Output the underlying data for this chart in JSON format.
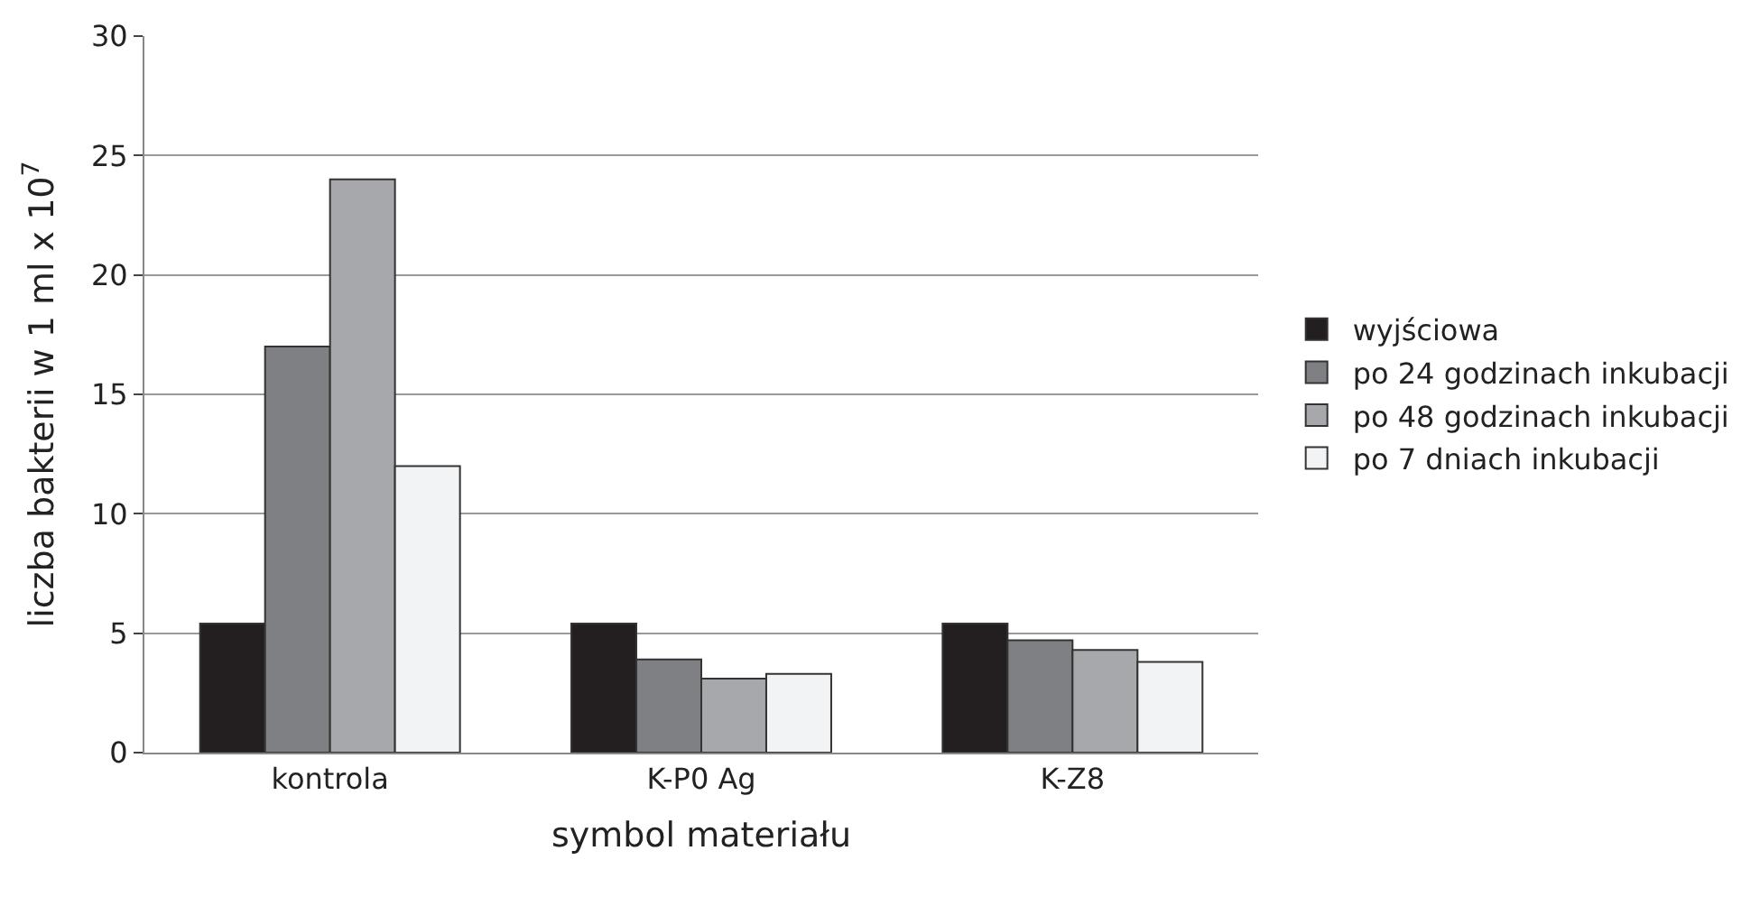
{
  "chart_data": {
    "type": "bar",
    "xlabel": "symbol materiału",
    "ylabel": "liczba bakterii w 1 ml x 10$^{7}$",
    "categories": [
      "kontrola",
      "K-P0 Ag",
      "K-Z8"
    ],
    "series": [
      {
        "name": "wyjściowa",
        "color": "#231f20",
        "values": [
          5.4,
          5.4,
          5.4
        ]
      },
      {
        "name": "po 24 godzinach inkubacji",
        "color": "#7f8083",
        "values": [
          17,
          3.9,
          4.7
        ]
      },
      {
        "name": "po 48 godzinach inkubacji",
        "color": "#a7a8ab",
        "values": [
          24,
          3.1,
          4.3
        ]
      },
      {
        "name": "po 7 dniach inkubacji",
        "color": "#f2f3f5",
        "values": [
          12,
          3.3,
          3.8
        ]
      }
    ],
    "ylim": [
      0,
      30
    ],
    "yticks": [
      0,
      5,
      10,
      15,
      20,
      25,
      30
    ],
    "grid": "y",
    "legend": "right"
  }
}
